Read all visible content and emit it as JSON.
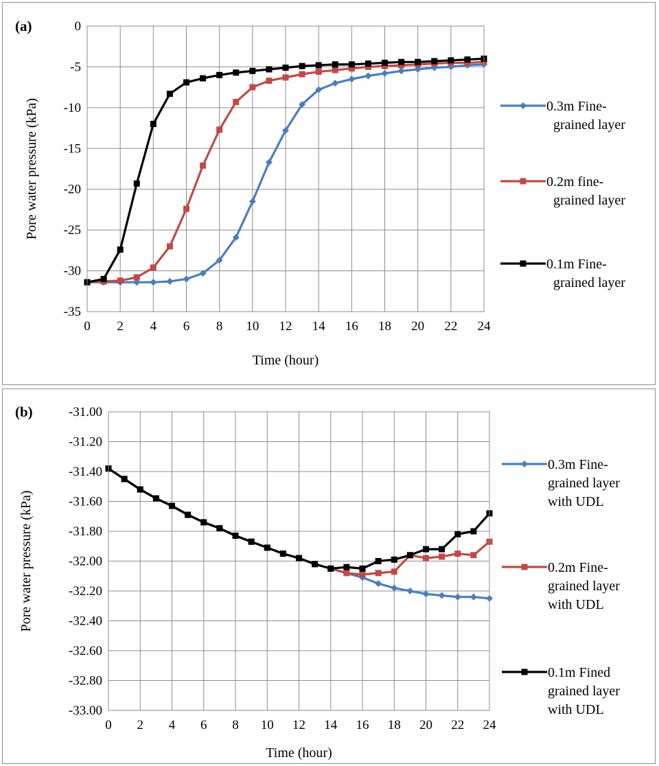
{
  "chart_data": [
    {
      "type": "line",
      "panel_label": "(a)",
      "xlabel": "Time (hour)",
      "ylabel": "Pore water pressure (kPa)",
      "xlim": [
        0,
        24
      ],
      "ylim": [
        -35,
        0
      ],
      "xticks": [
        "0",
        "2",
        "4",
        "6",
        "8",
        "10",
        "12",
        "14",
        "16",
        "18",
        "20",
        "22",
        "24"
      ],
      "yticks": [
        "0",
        "-5",
        "-10",
        "-15",
        "-20",
        "-25",
        "-30",
        "-35"
      ],
      "grid": true,
      "legend_position": "right",
      "x": [
        0,
        1,
        2,
        3,
        4,
        5,
        6,
        7,
        8,
        9,
        10,
        11,
        12,
        13,
        14,
        15,
        16,
        17,
        18,
        19,
        20,
        21,
        22,
        23,
        24
      ],
      "series": [
        {
          "name": "0.3m Fine-grained layer",
          "legend_lines": [
            "0.3m Fine-",
            "grained layer"
          ],
          "color": "#4a7ebb",
          "marker": "diamond",
          "values": [
            -31.4,
            -31.4,
            -31.4,
            -31.4,
            -31.4,
            -31.3,
            -31.0,
            -30.3,
            -28.7,
            -25.9,
            -21.5,
            -16.7,
            -12.8,
            -9.6,
            -7.8,
            -7.0,
            -6.5,
            -6.1,
            -5.8,
            -5.5,
            -5.3,
            -5.1,
            -5.0,
            -4.8,
            -4.7
          ]
        },
        {
          "name": "0.2m fine-grained layer",
          "legend_lines": [
            "0.2m fine-",
            "grained layer"
          ],
          "color": "#be4b48",
          "marker": "square",
          "values": [
            -31.4,
            -31.3,
            -31.2,
            -30.8,
            -29.6,
            -27.0,
            -22.4,
            -17.1,
            -12.7,
            -9.3,
            -7.5,
            -6.7,
            -6.3,
            -5.9,
            -5.6,
            -5.4,
            -5.2,
            -5.0,
            -4.9,
            -4.8,
            -4.7,
            -4.6,
            -4.5,
            -4.5,
            -4.4
          ]
        },
        {
          "name": "0.1m Fine-grained layer",
          "legend_lines": [
            "0.1m Fine-",
            "grained layer"
          ],
          "color": "#000000",
          "marker": "square",
          "values": [
            -31.4,
            -31.0,
            -27.4,
            -19.3,
            -12.0,
            -8.3,
            -6.9,
            -6.4,
            -6.0,
            -5.7,
            -5.5,
            -5.3,
            -5.1,
            -4.9,
            -4.8,
            -4.7,
            -4.7,
            -4.6,
            -4.5,
            -4.4,
            -4.4,
            -4.3,
            -4.2,
            -4.1,
            -4.0
          ]
        }
      ]
    },
    {
      "type": "line",
      "panel_label": "(b)",
      "xlabel": "Time (hour)",
      "ylabel": "Pore water pressure (kPa)",
      "xlim": [
        0,
        24
      ],
      "ylim": [
        -33.0,
        -31.0
      ],
      "xticks": [
        "0",
        "2",
        "4",
        "6",
        "8",
        "10",
        "12",
        "14",
        "16",
        "18",
        "20",
        "22",
        "24"
      ],
      "yticks": [
        "-31.00",
        "-31.20",
        "-31.40",
        "-31.60",
        "-31.80",
        "-32.00",
        "-32.20",
        "-32.40",
        "-32.60",
        "-32.80",
        "-33.00"
      ],
      "grid": true,
      "legend_position": "right",
      "x": [
        0,
        1,
        2,
        3,
        4,
        5,
        6,
        7,
        8,
        9,
        10,
        11,
        12,
        13,
        14,
        15,
        16,
        17,
        18,
        19,
        20,
        21,
        22,
        23,
        24
      ],
      "series": [
        {
          "name": "0.3m Fine-grained layer with UDL",
          "legend_lines": [
            "0.3m Fine-",
            "grained layer",
            "with UDL"
          ],
          "color": "#4a7ebb",
          "marker": "diamond",
          "values": [
            -31.38,
            -31.45,
            -31.52,
            -31.58,
            -31.63,
            -31.69,
            -31.74,
            -31.78,
            -31.83,
            -31.87,
            -31.91,
            -31.95,
            -31.98,
            -32.02,
            -32.05,
            -32.08,
            -32.11,
            -32.15,
            -32.18,
            -32.2,
            -32.22,
            -32.23,
            -32.24,
            -32.24,
            -32.25
          ]
        },
        {
          "name": "0.2m Fine-grained layer with UDL",
          "legend_lines": [
            "0.2m Fine-",
            "grained layer",
            "with UDL"
          ],
          "color": "#be4b48",
          "marker": "square",
          "values": [
            -31.38,
            -31.45,
            -31.52,
            -31.58,
            -31.63,
            -31.69,
            -31.74,
            -31.78,
            -31.83,
            -31.87,
            -31.91,
            -31.95,
            -31.98,
            -32.02,
            -32.05,
            -32.08,
            -32.09,
            -32.08,
            -32.07,
            -31.96,
            -31.98,
            -31.97,
            -31.95,
            -31.96,
            -31.87
          ]
        },
        {
          "name": "0.1m Fined grained layer with UDL",
          "legend_lines": [
            "0.1m Fined",
            "grained layer",
            "with UDL"
          ],
          "color": "#000000",
          "marker": "square",
          "values": [
            -31.38,
            -31.45,
            -31.52,
            -31.58,
            -31.63,
            -31.69,
            -31.74,
            -31.78,
            -31.83,
            -31.87,
            -31.91,
            -31.95,
            -31.98,
            -32.02,
            -32.05,
            -32.04,
            -32.05,
            -32.0,
            -31.99,
            -31.96,
            -31.92,
            -31.92,
            -31.82,
            -31.8,
            -31.68
          ]
        }
      ]
    }
  ]
}
